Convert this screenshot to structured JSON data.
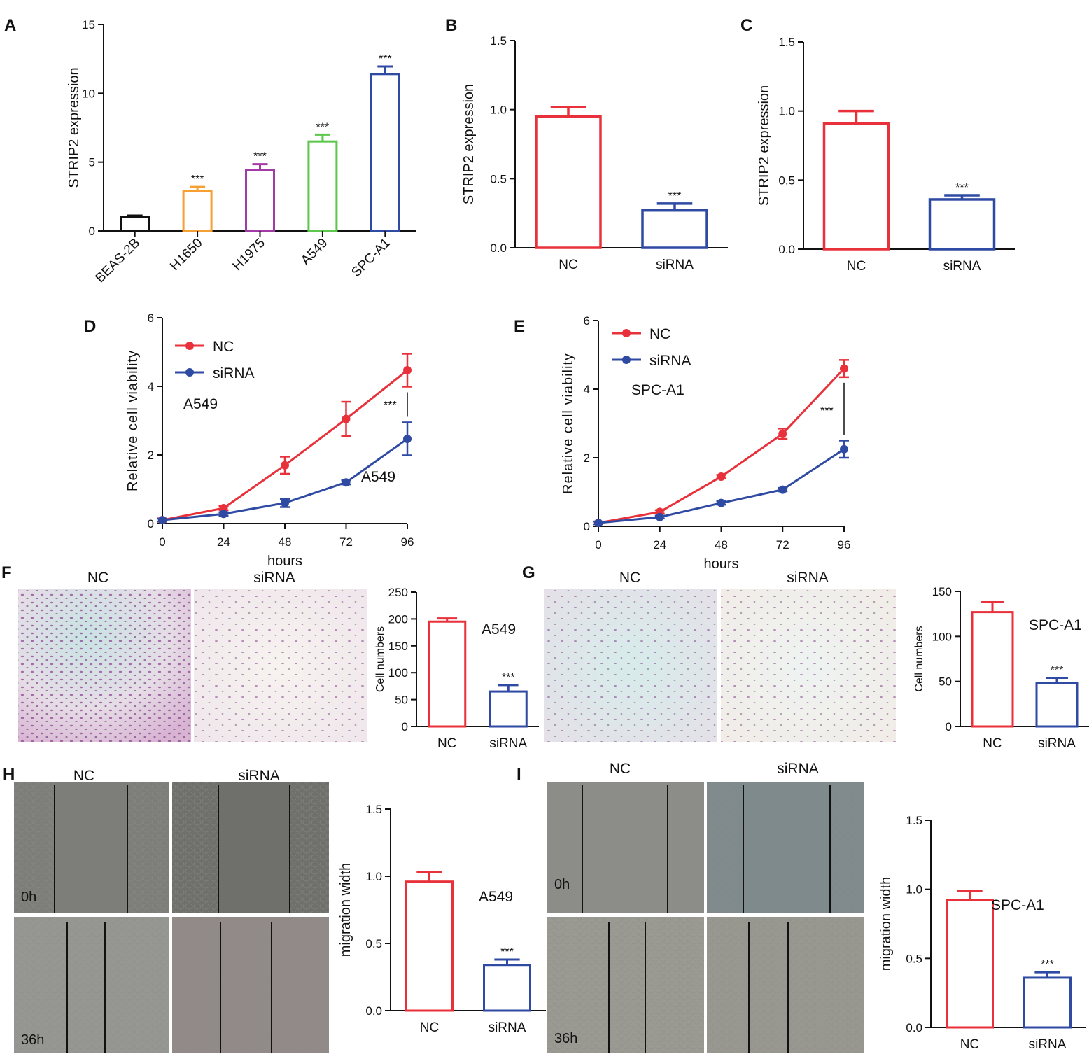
{
  "colors": {
    "nc": "#e8313a",
    "sirna": "#2f4aa3",
    "black": "#111111",
    "orange": "#f6a033",
    "purple": "#a23aa8",
    "green": "#5cc74a",
    "blue": "#2f4aa3"
  },
  "images": {
    "panel_f": {
      "left_title": "NC",
      "right_title": "siRNA"
    },
    "panel_g": {
      "left_title": "NC",
      "right_title": "siRNA"
    },
    "panel_h": {
      "left_title": "NC",
      "right_title": "siRNA",
      "time_top": "0h",
      "time_bottom": "36h"
    },
    "panel_i": {
      "left_title": "NC",
      "right_title": "siRNA",
      "time_top": "0h",
      "time_bottom": "36h"
    }
  },
  "chart_data": [
    {
      "id": "A",
      "letter": "A",
      "type": "bar",
      "categories": [
        "BEAS-2B",
        "H1650",
        "H1975",
        "A549",
        "SPC-A1"
      ],
      "values": [
        1.0,
        2.9,
        4.4,
        6.5,
        11.4
      ],
      "errors": [
        0.12,
        0.3,
        0.45,
        0.5,
        0.55
      ],
      "significance": [
        "",
        "***",
        "***",
        "***",
        "***"
      ],
      "bar_colors": [
        "#111111",
        "#f6a033",
        "#a23aa8",
        "#5cc74a",
        "#2f4aa3"
      ],
      "ylabel": "STRIP2 expression",
      "ylim": [
        0,
        15
      ],
      "yticks": [
        "0",
        "5",
        "10",
        "15"
      ],
      "annotation": ""
    },
    {
      "id": "B",
      "letter": "B",
      "type": "bar",
      "categories": [
        "NC",
        "siRNA"
      ],
      "values": [
        0.95,
        0.27
      ],
      "errors": [
        0.07,
        0.05
      ],
      "significance": [
        "",
        "***"
      ],
      "bar_colors": [
        "#e8313a",
        "#2f4aa3"
      ],
      "ylabel": "STRIP2 expression",
      "ylim": [
        0,
        1.5
      ],
      "yticks": [
        "0.0",
        "0.5",
        "1.0",
        "1.5"
      ],
      "annotation": ""
    },
    {
      "id": "C",
      "letter": "C",
      "type": "bar",
      "categories": [
        "NC",
        "siRNA"
      ],
      "values": [
        0.91,
        0.36
      ],
      "errors": [
        0.09,
        0.03
      ],
      "significance": [
        "",
        "***"
      ],
      "bar_colors": [
        "#e8313a",
        "#2f4aa3"
      ],
      "ylabel": "STRIP2 expression",
      "ylim": [
        0,
        1.5
      ],
      "yticks": [
        "0.0",
        "0.5",
        "1.0",
        "1.5"
      ],
      "annotation": ""
    },
    {
      "id": "D",
      "letter": "D",
      "type": "line",
      "x": [
        0,
        24,
        48,
        72,
        96
      ],
      "series": [
        {
          "name": "NC",
          "values": [
            0.1,
            0.45,
            1.7,
            3.05,
            4.47
          ],
          "errors": [
            0.05,
            0.06,
            0.25,
            0.5,
            0.48
          ]
        },
        {
          "name": "siRNA",
          "values": [
            0.1,
            0.28,
            0.6,
            1.2,
            2.47
          ],
          "errors": [
            0.04,
            0.05,
            0.12,
            0.06,
            0.48
          ]
        }
      ],
      "xlabel": "hours",
      "ylabel": "Relative cell viability",
      "xticks": [
        "0",
        "24",
        "48",
        "72",
        "96"
      ],
      "yticks": [
        "0",
        "2",
        "4",
        "6"
      ],
      "ylim": [
        0,
        6
      ],
      "significance": "***",
      "annotations": [
        "A549",
        "A549"
      ]
    },
    {
      "id": "E",
      "letter": "E",
      "type": "line",
      "x": [
        0,
        24,
        48,
        72,
        96
      ],
      "series": [
        {
          "name": "NC",
          "values": [
            0.1,
            0.42,
            1.45,
            2.7,
            4.6
          ],
          "errors": [
            0.04,
            0.05,
            0.05,
            0.15,
            0.25
          ]
        },
        {
          "name": "siRNA",
          "values": [
            0.1,
            0.27,
            0.68,
            1.07,
            2.25
          ],
          "errors": [
            0.04,
            0.04,
            0.05,
            0.05,
            0.25
          ]
        }
      ],
      "xlabel": "hours",
      "ylabel": "Relative cell viability",
      "xticks": [
        "0",
        "24",
        "48",
        "72",
        "96"
      ],
      "yticks": [
        "0",
        "2",
        "4",
        "6"
      ],
      "ylim": [
        0,
        6
      ],
      "significance": "***",
      "annotations": [
        "SPC-A1"
      ]
    },
    {
      "id": "F",
      "letter": "F",
      "type": "bar",
      "categories": [
        "NC",
        "siRNA"
      ],
      "values": [
        195,
        65
      ],
      "errors": [
        6,
        12
      ],
      "significance": [
        "",
        "***"
      ],
      "bar_colors": [
        "#e8313a",
        "#2f4aa3"
      ],
      "ylabel": "Cell numbers",
      "ylim": [
        0,
        250
      ],
      "yticks": [
        "0",
        "50",
        "100",
        "150",
        "200",
        "250"
      ],
      "annotation": "A549"
    },
    {
      "id": "G",
      "letter": "G",
      "type": "bar",
      "categories": [
        "NC",
        "siRNA"
      ],
      "values": [
        127,
        48
      ],
      "errors": [
        11,
        6
      ],
      "significance": [
        "",
        "***"
      ],
      "bar_colors": [
        "#e8313a",
        "#2f4aa3"
      ],
      "ylabel": "Cell numbers",
      "ylim": [
        0,
        150
      ],
      "yticks": [
        "0",
        "50",
        "100",
        "150"
      ],
      "annotation": "SPC-A1"
    },
    {
      "id": "H",
      "letter": "H",
      "type": "bar",
      "categories": [
        "NC",
        "siRNA"
      ],
      "values": [
        0.96,
        0.34
      ],
      "errors": [
        0.07,
        0.04
      ],
      "significance": [
        "",
        "***"
      ],
      "bar_colors": [
        "#e8313a",
        "#2f4aa3"
      ],
      "ylabel": "migration width",
      "ylim": [
        0,
        1.5
      ],
      "yticks": [
        "0.0",
        "0.5",
        "1.0",
        "1.5"
      ],
      "annotation": "A549"
    },
    {
      "id": "I",
      "letter": "I",
      "type": "bar",
      "categories": [
        "NC",
        "siRNA"
      ],
      "values": [
        0.92,
        0.36
      ],
      "errors": [
        0.07,
        0.04
      ],
      "significance": [
        "",
        "***"
      ],
      "bar_colors": [
        "#e8313a",
        "#2f4aa3"
      ],
      "ylabel": "migration width",
      "ylim": [
        0,
        1.5
      ],
      "yticks": [
        "0.0",
        "0.5",
        "1.0",
        "1.5"
      ],
      "annotation": "SPC-A1"
    }
  ]
}
